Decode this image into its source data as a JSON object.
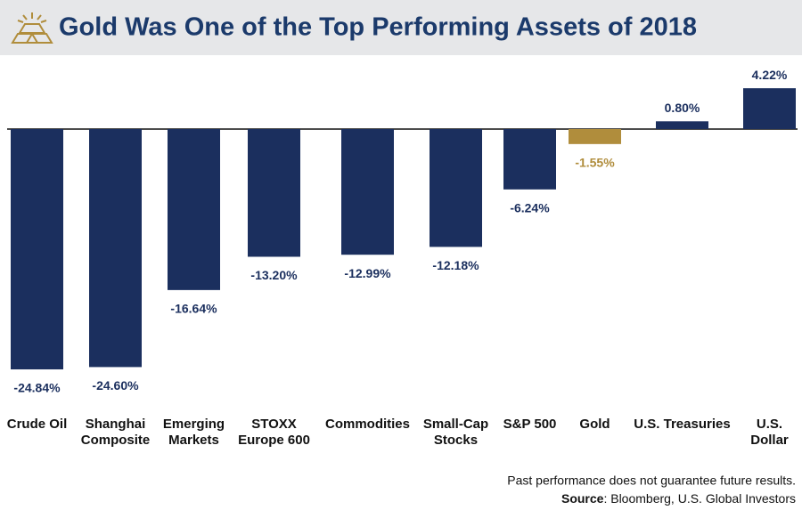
{
  "chart_data": {
    "type": "bar",
    "title": "Gold Was One of the Top Performing Assets of 2018",
    "categories": [
      "Crude Oil",
      "Shanghai\nComposite",
      "Emerging\nMarkets",
      "STOXX\nEurope 600",
      "Commodities",
      "Small-Cap\nStocks",
      "S&P 500",
      "Gold",
      "U.S. Treasuries",
      "U.S.\nDollar"
    ],
    "values": [
      -24.84,
      -24.6,
      -16.64,
      -13.2,
      -12.99,
      -12.18,
      -6.24,
      -1.55,
      0.8,
      4.22
    ],
    "value_labels": [
      "-24.84%",
      "-24.60%",
      "-16.64%",
      "-13.20%",
      "-12.99%",
      "-12.18%",
      "-6.24%",
      "-1.55%",
      "0.80%",
      "4.22%"
    ],
    "colors": [
      "#1b2f5e",
      "#1b2f5e",
      "#1b2f5e",
      "#1b2f5e",
      "#1b2f5e",
      "#1b2f5e",
      "#1b2f5e",
      "#b08d3c",
      "#1b2f5e",
      "#1b2f5e"
    ],
    "footnote": "Past performance does not guarantee future results.",
    "source_label": "Source",
    "source_text": ": Bloomberg, U.S. Global Investors"
  }
}
